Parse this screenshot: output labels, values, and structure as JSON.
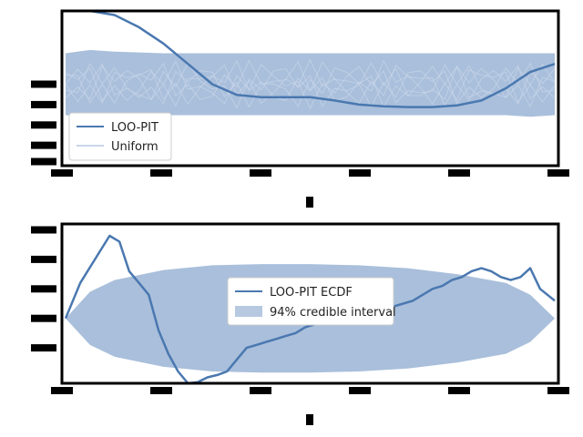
{
  "colors": {
    "band": "#a4bcd9",
    "line": "#4a78b0",
    "uniform_line": "#c9d6ea",
    "tick": "#000000",
    "frame": "#000000"
  },
  "chart_data": [
    {
      "type": "area",
      "xlim": [
        0,
        1
      ],
      "ylim": [
        0,
        1.9
      ],
      "xlabel": "",
      "legend": {
        "position": "bottom-left",
        "entries": [
          "LOO-PIT",
          "Uniform"
        ]
      },
      "series": [
        {
          "name": "Uniform",
          "kind": "band",
          "x": [
            0,
            0.05,
            0.1,
            0.2,
            0.3,
            0.4,
            0.5,
            0.6,
            0.7,
            0.8,
            0.9,
            0.95,
            1.0
          ],
          "low": [
            0.62,
            0.6,
            0.62,
            0.62,
            0.62,
            0.62,
            0.62,
            0.62,
            0.62,
            0.62,
            0.62,
            0.6,
            0.62
          ],
          "high": [
            1.38,
            1.42,
            1.4,
            1.38,
            1.38,
            1.38,
            1.38,
            1.38,
            1.38,
            1.38,
            1.38,
            1.38,
            1.38
          ]
        },
        {
          "name": "LOO-PIT",
          "kind": "line",
          "x": [
            0.05,
            0.1,
            0.15,
            0.2,
            0.25,
            0.3,
            0.35,
            0.4,
            0.45,
            0.5,
            0.55,
            0.6,
            0.65,
            0.7,
            0.75,
            0.8,
            0.85,
            0.9,
            0.95,
            1.0
          ],
          "y": [
            1.9,
            1.85,
            1.7,
            1.5,
            1.25,
            1.0,
            0.87,
            0.84,
            0.84,
            0.84,
            0.8,
            0.75,
            0.73,
            0.72,
            0.72,
            0.74,
            0.8,
            0.95,
            1.15,
            1.25
          ]
        }
      ]
    },
    {
      "type": "area",
      "xlim": [
        0,
        1
      ],
      "ylim": [
        -0.11,
        0.16
      ],
      "xlabel": "",
      "legend": {
        "position": "center",
        "entries": [
          "LOO-PIT ECDF",
          "94% credible interval"
        ]
      },
      "series": [
        {
          "name": "94% credible interval",
          "kind": "band",
          "x": [
            0,
            0.05,
            0.1,
            0.2,
            0.3,
            0.4,
            0.5,
            0.6,
            0.7,
            0.8,
            0.9,
            0.95,
            1.0
          ],
          "low": [
            0.0,
            -0.045,
            -0.065,
            -0.082,
            -0.09,
            -0.092,
            -0.092,
            -0.09,
            -0.085,
            -0.075,
            -0.06,
            -0.04,
            0.0
          ],
          "high": [
            0.0,
            0.045,
            0.065,
            0.082,
            0.09,
            0.092,
            0.092,
            0.09,
            0.085,
            0.075,
            0.06,
            0.04,
            0.0
          ]
        },
        {
          "name": "LOO-PIT ECDF",
          "kind": "line",
          "x": [
            0.0,
            0.03,
            0.06,
            0.09,
            0.11,
            0.13,
            0.15,
            0.17,
            0.19,
            0.21,
            0.23,
            0.25,
            0.27,
            0.29,
            0.31,
            0.33,
            0.35,
            0.37,
            0.39,
            0.41,
            0.43,
            0.45,
            0.47,
            0.49,
            0.51,
            0.53,
            0.55,
            0.57,
            0.59,
            0.61,
            0.63,
            0.65,
            0.67,
            0.69,
            0.71,
            0.73,
            0.75,
            0.77,
            0.79,
            0.81,
            0.83,
            0.85,
            0.87,
            0.89,
            0.91,
            0.93,
            0.95,
            0.97,
            1.0
          ],
          "y": [
            0.0,
            0.06,
            0.1,
            0.14,
            0.13,
            0.08,
            0.06,
            0.04,
            -0.02,
            -0.06,
            -0.09,
            -0.11,
            -0.108,
            -0.1,
            -0.096,
            -0.09,
            -0.07,
            -0.05,
            -0.045,
            -0.04,
            -0.035,
            -0.03,
            -0.025,
            -0.015,
            -0.01,
            0.0,
            0.005,
            0.01,
            0.02,
            0.025,
            0.01,
            0.015,
            0.02,
            0.025,
            0.03,
            0.04,
            0.05,
            0.055,
            0.065,
            0.07,
            0.08,
            0.085,
            0.08,
            0.07,
            0.065,
            0.07,
            0.085,
            0.05,
            0.03
          ]
        }
      ]
    }
  ]
}
